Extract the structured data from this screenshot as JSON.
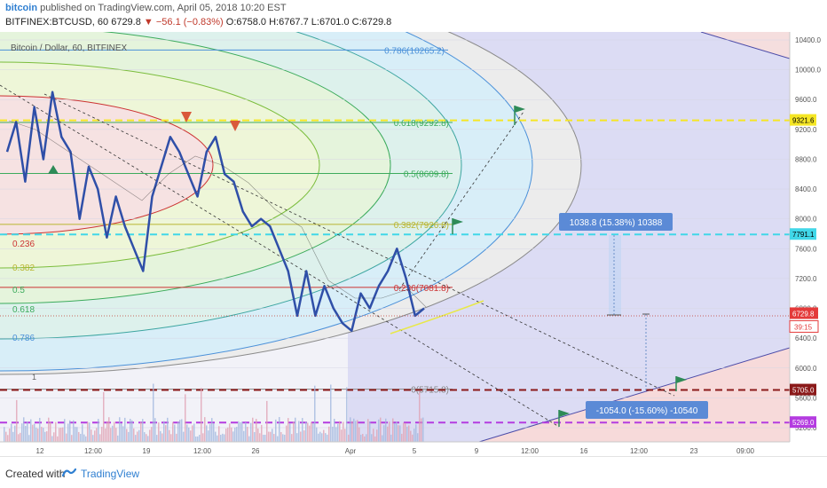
{
  "header": {
    "author": "bitcoin",
    "published_text": "published on TradingView.com, April 05, 2018 10:20 EST",
    "symbol": "BITFINEX:BTCUSD, 60",
    "last": "6729.8",
    "change": "▼ −56.1 (−0.83%)",
    "ohlc": "O:6758.0 H:6767.7 L:6701.0 C:6729.8"
  },
  "chart_title": "Bitcoin / Dollar, 60, BITFINEX",
  "footer": {
    "created_with": "Created with",
    "brand": "TradingView"
  },
  "colors": {
    "bg_left": "#f0f0f7",
    "bg_right": "#dadaf5",
    "price_line": "#2f4fa8",
    "accent_blue": "#5b8ad6"
  },
  "chart_data": {
    "type": "line",
    "title": "Bitcoin / Dollar, 60, BITFINEX",
    "ylim": [
      4800,
      10500
    ],
    "y_ticks": [
      10400,
      10000,
      9600,
      9200,
      8800,
      8400,
      8000,
      7600,
      7200,
      6800,
      6400,
      6000,
      5600,
      5200
    ],
    "x_ticks": [
      "12",
      "12:00",
      "19",
      "12:00",
      "26",
      "Apr",
      "5",
      "9",
      "12:00",
      "16",
      "12:00",
      "23",
      "09:00"
    ],
    "price_series": {
      "name": "BTCUSD",
      "values": [
        8900,
        9300,
        8500,
        9500,
        8800,
        9700,
        9100,
        8900,
        8000,
        8700,
        8400,
        7750,
        8300,
        7900,
        7600,
        7300,
        8300,
        8700,
        9100,
        8900,
        8600,
        8300,
        8900,
        9100,
        8600,
        8500,
        8100,
        7900,
        8000,
        7900,
        7600,
        7300,
        6700,
        7300,
        6700,
        7100,
        6800,
        6600,
        6500,
        7000,
        6800,
        7100,
        7300,
        7600,
        7200,
        6700,
        6800
      ]
    },
    "fib_levels": [
      {
        "label": "0.786(10265.2)",
        "value": 10265.2,
        "color": "#4a90d9"
      },
      {
        "label": "0.618(9292.8)",
        "value": 9292.8,
        "color": "#3cab5c"
      },
      {
        "label": "0.5(8609.8)",
        "value": 8609.8,
        "color": "#3cab5c"
      },
      {
        "label": "0.382(7926.8)",
        "value": 7926.8,
        "color": "#b9b530"
      },
      {
        "label": "0.236(7081.8)",
        "value": 7081.8,
        "color": "#cc3333"
      },
      {
        "label": "0(5715.8)",
        "value": 5715.8,
        "color": "#888888"
      }
    ],
    "left_fib_labels": [
      "0.236",
      "0.382",
      "0.5",
      "0.618",
      "0.786"
    ],
    "horizontal_levels": [
      {
        "label": "9321.6",
        "value": 9321.6,
        "color": "#f5e625",
        "style": "dashed"
      },
      {
        "label": "7791.1",
        "value": 7791.1,
        "color": "#41d7e8",
        "style": "dashed"
      },
      {
        "label": "5705.0",
        "value": 5705.0,
        "color": "#8b1a1a",
        "style": "dashed"
      },
      {
        "label": "5269.0",
        "value": 5269.0,
        "color": "#b43ce0",
        "style": "dashed"
      }
    ],
    "current_price": {
      "label": "6729.8",
      "value": 6729.8,
      "countdown": "39:15"
    },
    "measurements": [
      {
        "label": "1038.8 (15.38%) 10388"
      },
      {
        "label": "-1054.0 (-15.60%) -10540"
      }
    ],
    "annotations": [
      "1"
    ]
  }
}
